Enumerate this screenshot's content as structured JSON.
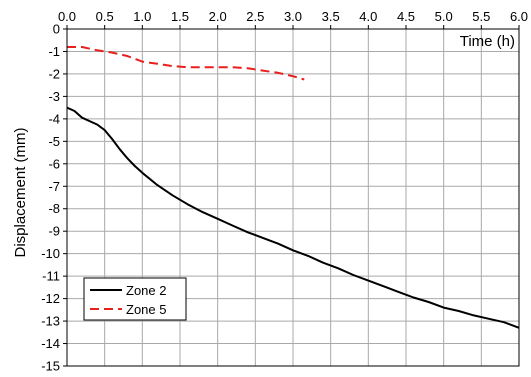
{
  "chart_data": {
    "type": "line",
    "title": "",
    "xlabel": "Time (h)",
    "ylabel": "Displacement (mm)",
    "xlim": [
      0.0,
      6.0
    ],
    "ylim": [
      -15,
      0
    ],
    "x_ticks": [
      "0.0",
      "0.5",
      "1.0",
      "1.5",
      "2.0",
      "2.5",
      "3.0",
      "3.5",
      "4.0",
      "4.5",
      "5.0",
      "5.5",
      "6.0"
    ],
    "y_ticks": [
      "0",
      "-1",
      "-2",
      "-3",
      "-4",
      "-5",
      "-6",
      "-7",
      "-8",
      "-9",
      "-10",
      "-11",
      "-12",
      "-13",
      "-14",
      "-15"
    ],
    "x_axis_position": "top",
    "grid": true,
    "legend_position": "bottom-left",
    "series": [
      {
        "name": "Zone 2",
        "color": "#000000",
        "style": "solid",
        "points": [
          [
            0.0,
            -3.5
          ],
          [
            0.1,
            -3.65
          ],
          [
            0.2,
            -3.95
          ],
          [
            0.3,
            -4.1
          ],
          [
            0.4,
            -4.25
          ],
          [
            0.5,
            -4.5
          ],
          [
            0.6,
            -4.9
          ],
          [
            0.7,
            -5.35
          ],
          [
            0.8,
            -5.75
          ],
          [
            0.9,
            -6.1
          ],
          [
            1.0,
            -6.4
          ],
          [
            1.2,
            -6.95
          ],
          [
            1.4,
            -7.4
          ],
          [
            1.6,
            -7.8
          ],
          [
            1.8,
            -8.15
          ],
          [
            2.0,
            -8.45
          ],
          [
            2.2,
            -8.75
          ],
          [
            2.4,
            -9.05
          ],
          [
            2.6,
            -9.3
          ],
          [
            2.8,
            -9.55
          ],
          [
            3.0,
            -9.85
          ],
          [
            3.2,
            -10.1
          ],
          [
            3.4,
            -10.4
          ],
          [
            3.6,
            -10.65
          ],
          [
            3.8,
            -10.95
          ],
          [
            4.0,
            -11.2
          ],
          [
            4.2,
            -11.45
          ],
          [
            4.4,
            -11.7
          ],
          [
            4.6,
            -11.95
          ],
          [
            4.8,
            -12.15
          ],
          [
            5.0,
            -12.4
          ],
          [
            5.2,
            -12.55
          ],
          [
            5.4,
            -12.75
          ],
          [
            5.6,
            -12.9
          ],
          [
            5.8,
            -13.05
          ],
          [
            6.0,
            -13.3
          ]
        ]
      },
      {
        "name": "Zone 5",
        "color": "#e8201c",
        "style": "dashed",
        "points": [
          [
            0.0,
            -0.8
          ],
          [
            0.2,
            -0.8
          ],
          [
            0.4,
            -0.95
          ],
          [
            0.6,
            -1.05
          ],
          [
            0.8,
            -1.2
          ],
          [
            1.0,
            -1.45
          ],
          [
            1.2,
            -1.55
          ],
          [
            1.4,
            -1.65
          ],
          [
            1.6,
            -1.7
          ],
          [
            1.8,
            -1.7
          ],
          [
            2.0,
            -1.7
          ],
          [
            2.2,
            -1.7
          ],
          [
            2.4,
            -1.75
          ],
          [
            2.6,
            -1.85
          ],
          [
            2.8,
            -1.95
          ],
          [
            3.0,
            -2.1
          ],
          [
            3.15,
            -2.25
          ]
        ]
      }
    ]
  }
}
